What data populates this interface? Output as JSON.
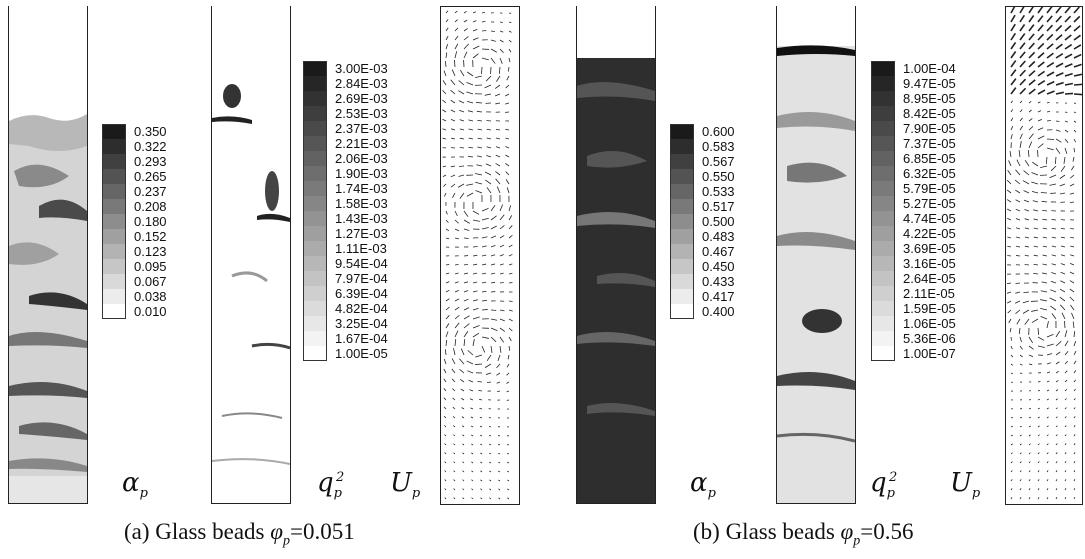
{
  "panels": [
    {
      "id": "a",
      "caption": {
        "prefix": "(a) Glass beads ",
        "symbol": "φ",
        "sub": "p",
        "suffix": "=0.051"
      },
      "alpha_legend": [
        "0.350",
        "0.322",
        "0.293",
        "0.265",
        "0.237",
        "0.208",
        "0.180",
        "0.152",
        "0.123",
        "0.095",
        "0.067",
        "0.038",
        "0.010"
      ],
      "q2_legend": [
        "3.00E-03",
        "2.84E-03",
        "2.69E-03",
        "2.53E-03",
        "2.37E-03",
        "2.21E-03",
        "2.06E-03",
        "1.90E-03",
        "1.74E-03",
        "1.58E-03",
        "1.43E-03",
        "1.27E-03",
        "1.11E-03",
        "9.54E-04",
        "7.97E-04",
        "6.39E-04",
        "4.82E-04",
        "3.25E-04",
        "1.67E-04",
        "1.00E-05"
      ],
      "alpha_symbol": {
        "base": "α",
        "sub": "p"
      },
      "q2_symbol": {
        "base": "q",
        "sup": "2",
        "sub": "p"
      },
      "u_symbol": {
        "base": "U",
        "sub": "p"
      }
    },
    {
      "id": "b",
      "caption": {
        "prefix": "(b) Glass beads ",
        "symbol": "φ",
        "sub": "p",
        "suffix": "=0.56"
      },
      "alpha_legend": [
        "0.600",
        "0.583",
        "0.567",
        "0.550",
        "0.533",
        "0.517",
        "0.500",
        "0.483",
        "0.467",
        "0.450",
        "0.433",
        "0.417",
        "0.400"
      ],
      "q2_legend": [
        "1.00E-04",
        "9.47E-05",
        "8.95E-05",
        "8.42E-05",
        "7.90E-05",
        "7.37E-05",
        "6.85E-05",
        "6.32E-05",
        "5.79E-05",
        "5.27E-05",
        "4.74E-05",
        "4.22E-05",
        "3.69E-05",
        "3.16E-05",
        "2.64E-05",
        "2.11E-05",
        "1.59E-05",
        "1.06E-05",
        "5.36E-06",
        "1.00E-07"
      ],
      "alpha_symbol": {
        "base": "α",
        "sub": "p"
      },
      "q2_symbol": {
        "base": "q",
        "sup": "2",
        "sub": "p"
      },
      "u_symbol": {
        "base": "U",
        "sub": "p"
      }
    }
  ],
  "colors": {
    "legend_dark": "#1a1a1a",
    "legend_light": "#ffffff",
    "frame": "#222222"
  }
}
